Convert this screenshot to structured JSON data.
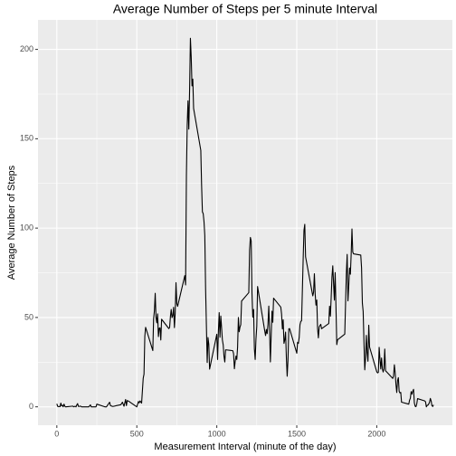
{
  "chart_data": {
    "type": "line",
    "title": "Average Number of Steps per 5 minute Interval",
    "xlabel": "Measurement Interval (minute of the day)",
    "ylabel": "Average Number of Steps",
    "color": "#000000",
    "grid": true,
    "xlim": [
      -117.75,
      2472.75
    ],
    "ylim": [
      -10.3,
      216.5
    ],
    "xticks": [
      0,
      500,
      1000,
      1500,
      2000
    ],
    "yticks": [
      0,
      50,
      100,
      150,
      200
    ],
    "x": [
      0,
      5,
      10,
      15,
      20,
      25,
      30,
      35,
      40,
      45,
      50,
      55,
      100,
      105,
      110,
      115,
      120,
      125,
      130,
      135,
      140,
      145,
      150,
      155,
      200,
      210,
      215,
      220,
      230,
      245,
      250,
      300,
      310,
      330,
      335,
      340,
      350,
      400,
      410,
      420,
      430,
      435,
      440,
      450,
      500,
      510,
      515,
      520,
      530,
      540,
      545,
      550,
      555,
      600,
      605,
      610,
      615,
      620,
      625,
      630,
      635,
      640,
      645,
      650,
      655,
      700,
      705,
      710,
      715,
      720,
      725,
      730,
      735,
      740,
      745,
      750,
      755,
      800,
      805,
      810,
      815,
      820,
      825,
      830,
      835,
      840,
      845,
      850,
      855,
      900,
      905,
      910,
      915,
      920,
      925,
      930,
      935,
      940,
      945,
      950,
      955,
      1000,
      1005,
      1010,
      1015,
      1020,
      1025,
      1030,
      1035,
      1040,
      1045,
      1050,
      1055,
      1100,
      1105,
      1110,
      1115,
      1120,
      1125,
      1130,
      1135,
      1140,
      1145,
      1150,
      1155,
      1200,
      1205,
      1210,
      1215,
      1220,
      1225,
      1230,
      1235,
      1240,
      1245,
      1250,
      1255,
      1300,
      1305,
      1310,
      1315,
      1320,
      1325,
      1330,
      1335,
      1340,
      1345,
      1350,
      1355,
      1400,
      1405,
      1410,
      1415,
      1420,
      1425,
      1430,
      1435,
      1440,
      1445,
      1450,
      1455,
      1500,
      1505,
      1510,
      1515,
      1520,
      1525,
      1530,
      1535,
      1540,
      1545,
      1550,
      1555,
      1600,
      1605,
      1610,
      1615,
      1620,
      1625,
      1630,
      1635,
      1640,
      1645,
      1650,
      1655,
      1700,
      1705,
      1710,
      1715,
      1720,
      1725,
      1730,
      1735,
      1740,
      1745,
      1750,
      1755,
      1800,
      1805,
      1810,
      1815,
      1820,
      1825,
      1830,
      1835,
      1840,
      1845,
      1850,
      1855,
      1900,
      1905,
      1910,
      1915,
      1920,
      1925,
      1930,
      1935,
      1940,
      1945,
      1950,
      1955,
      2000,
      2005,
      2010,
      2015,
      2020,
      2025,
      2030,
      2035,
      2040,
      2045,
      2050,
      2055,
      2100,
      2105,
      2110,
      2115,
      2120,
      2125,
      2130,
      2135,
      2140,
      2145,
      2150,
      2155,
      2200,
      2205,
      2210,
      2215,
      2220,
      2225,
      2230,
      2235,
      2240,
      2245,
      2250,
      2255,
      2300,
      2305,
      2310,
      2315,
      2320,
      2325,
      2330,
      2335,
      2340,
      2345,
      2350,
      2355
    ],
    "values": [
      1.7,
      0.3,
      0.1,
      0.2,
      0.1,
      2.1,
      0.5,
      0.9,
      0,
      1.5,
      0.3,
      0,
      0.4,
      0,
      0.2,
      0.3,
      0,
      1.1,
      1.8,
      0.2,
      0.2,
      0.4,
      0.3,
      0,
      0,
      1.1,
      0,
      0,
      0,
      0,
      1.5,
      0,
      0,
      2.6,
      0.7,
      0.5,
      0.2,
      1.2,
      2.6,
      0.3,
      4.1,
      0.7,
      3.5,
      3.1,
      0,
      3,
      2.2,
      3.3,
      2.1,
      16,
      18.3,
      39.5,
      44.5,
      31.5,
      49.3,
      53.8,
      63.5,
      50,
      47,
      52,
      39.3,
      44,
      44.2,
      37.4,
      49,
      43.8,
      44.4,
      50.5,
      54.5,
      49.9,
      51,
      55.7,
      44.3,
      52.3,
      69.5,
      57.8,
      56.2,
      73.4,
      68.2,
      129.4,
      157.5,
      171.2,
      155.4,
      177.3,
      206.2,
      195.9,
      179.6,
      183.4,
      167,
      143.5,
      124,
      109.1,
      108.1,
      103.7,
      95.9,
      66.2,
      45.2,
      24.8,
      38.8,
      34.98,
      21.1,
      40.6,
      26.5,
      42.4,
      52.7,
      38.9,
      50.8,
      44.3,
      37.4,
      34.7,
      28.3,
      25.1,
      31.9,
      31.4,
      29.7,
      21.3,
      25.5,
      28.4,
      26.5,
      33.4,
      49.98,
      42,
      44.6,
      46,
      59.2,
      63.9,
      87.7,
      94.8,
      92.8,
      63.4,
      50.2,
      54.5,
      32.4,
      26.5,
      37.7,
      45.1,
      67.3,
      42.3,
      39.9,
      43.3,
      40.98,
      46.2,
      56.4,
      42.8,
      25.1,
      39.97,
      53.5,
      47.3,
      60.8,
      55.8,
      51.96,
      43.6,
      48.7,
      35.5,
      37.5,
      41.8,
      27.5,
      17.1,
      26.1,
      43.6,
      43.8,
      30,
      36.1,
      35.5,
      38.8,
      45.96,
      47.8,
      48.1,
      65.3,
      82.9,
      98.7,
      102.1,
      83.96,
      62.1,
      64.1,
      74.5,
      63.2,
      56.9,
      59.8,
      43.9,
      38.6,
      44.7,
      45.5,
      46.2,
      43.7,
      46.6,
      56.3,
      50.7,
      61.2,
      72.7,
      78.9,
      68.9,
      59.7,
      75.1,
      56.5,
      34.8,
      37.5,
      40.7,
      58,
      74.7,
      85.3,
      59.3,
      67.8,
      77.7,
      74.2,
      85.3,
      99.5,
      86.6,
      85.6,
      84.9,
      77.8,
      58,
      53.4,
      36.3,
      20.7,
      27.4,
      40,
      30.2,
      25.5,
      45.7,
      33.5,
      19.6,
      19,
      19.3,
      33.3,
      26.8,
      21.2,
      27.3,
      21.3,
      19.5,
      21.3,
      32.3,
      20.2,
      15.9,
      17.2,
      23.5,
      19.2,
      12.5,
      8,
      14.7,
      16.3,
      8.7,
      7.8,
      8.1,
      2.6,
      1.5,
      3.7,
      4.8,
      8.5,
      7.1,
      8.7,
      9.8,
      2.2,
      0.3,
      0.1,
      1.6,
      4.6,
      3.3,
      2.8,
      0,
      0.8,
      0.96,
      1.6,
      2.6,
      4.7,
      3.3,
      0.6,
      0.2,
      1.1
    ]
  }
}
